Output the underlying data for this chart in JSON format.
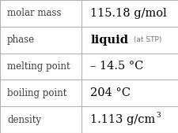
{
  "rows": [
    {
      "label": "molar mass",
      "value": "115.18 g/mol",
      "type": "plain"
    },
    {
      "label": "phase",
      "value": "liquid",
      "suffix": " (at STP)",
      "type": "phase"
    },
    {
      "label": "melting point",
      "value": "– 14.5 °C",
      "type": "plain"
    },
    {
      "label": "boiling point",
      "value": "204 °C",
      "type": "plain"
    },
    {
      "label": "density",
      "value": "1.113 g/cm",
      "superscript": "3",
      "type": "super"
    }
  ],
  "label_color": "#3a3a3a",
  "value_color": "#000000",
  "suffix_color": "#707070",
  "border_color": "#b0b0b0",
  "background_color": "#ffffff",
  "label_fontsize": 8.5,
  "value_fontsize": 10.5,
  "suffix_fontsize": 6.5,
  "col_split": 0.455,
  "figsize": [
    2.26,
    1.69
  ],
  "dpi": 100
}
